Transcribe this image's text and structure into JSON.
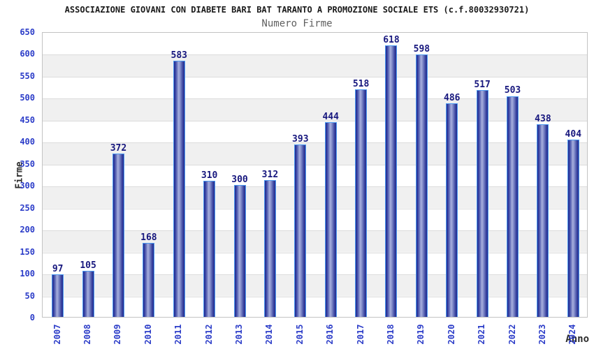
{
  "header": {
    "title": "ASSOCIAZIONE GIOVANI CON DIABETE BARI BAT TARANTO A PROMOZIONE SOCIALE ETS (c.f.80032930721)",
    "subtitle": "Numero Firme"
  },
  "chart_data": {
    "type": "bar",
    "title": "Numero Firme",
    "xlabel": "Anno",
    "ylabel": "Firme",
    "categories": [
      "2007",
      "2008",
      "2009",
      "2010",
      "2011",
      "2012",
      "2013",
      "2014",
      "2015",
      "2016",
      "2017",
      "2018",
      "2019",
      "2020",
      "2021",
      "2022",
      "2023",
      "2024"
    ],
    "values": [
      97,
      105,
      372,
      168,
      583,
      310,
      300,
      312,
      393,
      444,
      518,
      618,
      598,
      486,
      517,
      503,
      438,
      404
    ],
    "ylim": [
      0,
      650
    ],
    "ytick_step": 50,
    "yticks": [
      0,
      50,
      100,
      150,
      200,
      250,
      300,
      350,
      400,
      450,
      500,
      550,
      600,
      650
    ],
    "grid": true,
    "legend": false,
    "bands": "alternating horizontal white/gray every 50 units"
  },
  "colors": {
    "title_text": "#1a1a1a",
    "subtitle_text": "#606060",
    "axis_label_text": "#2b2b2b",
    "tick_label": "#2b3cc8",
    "value_label": "#17177e",
    "bar_dark": "#232c8f",
    "bar_light": "#a8b0de",
    "bar_highlight_border": "#4d9af0",
    "band_gray": "#f0f0f0",
    "gridline": "#dcdcdc",
    "plot_border": "#c3c3c3",
    "background": "#ffffff"
  }
}
